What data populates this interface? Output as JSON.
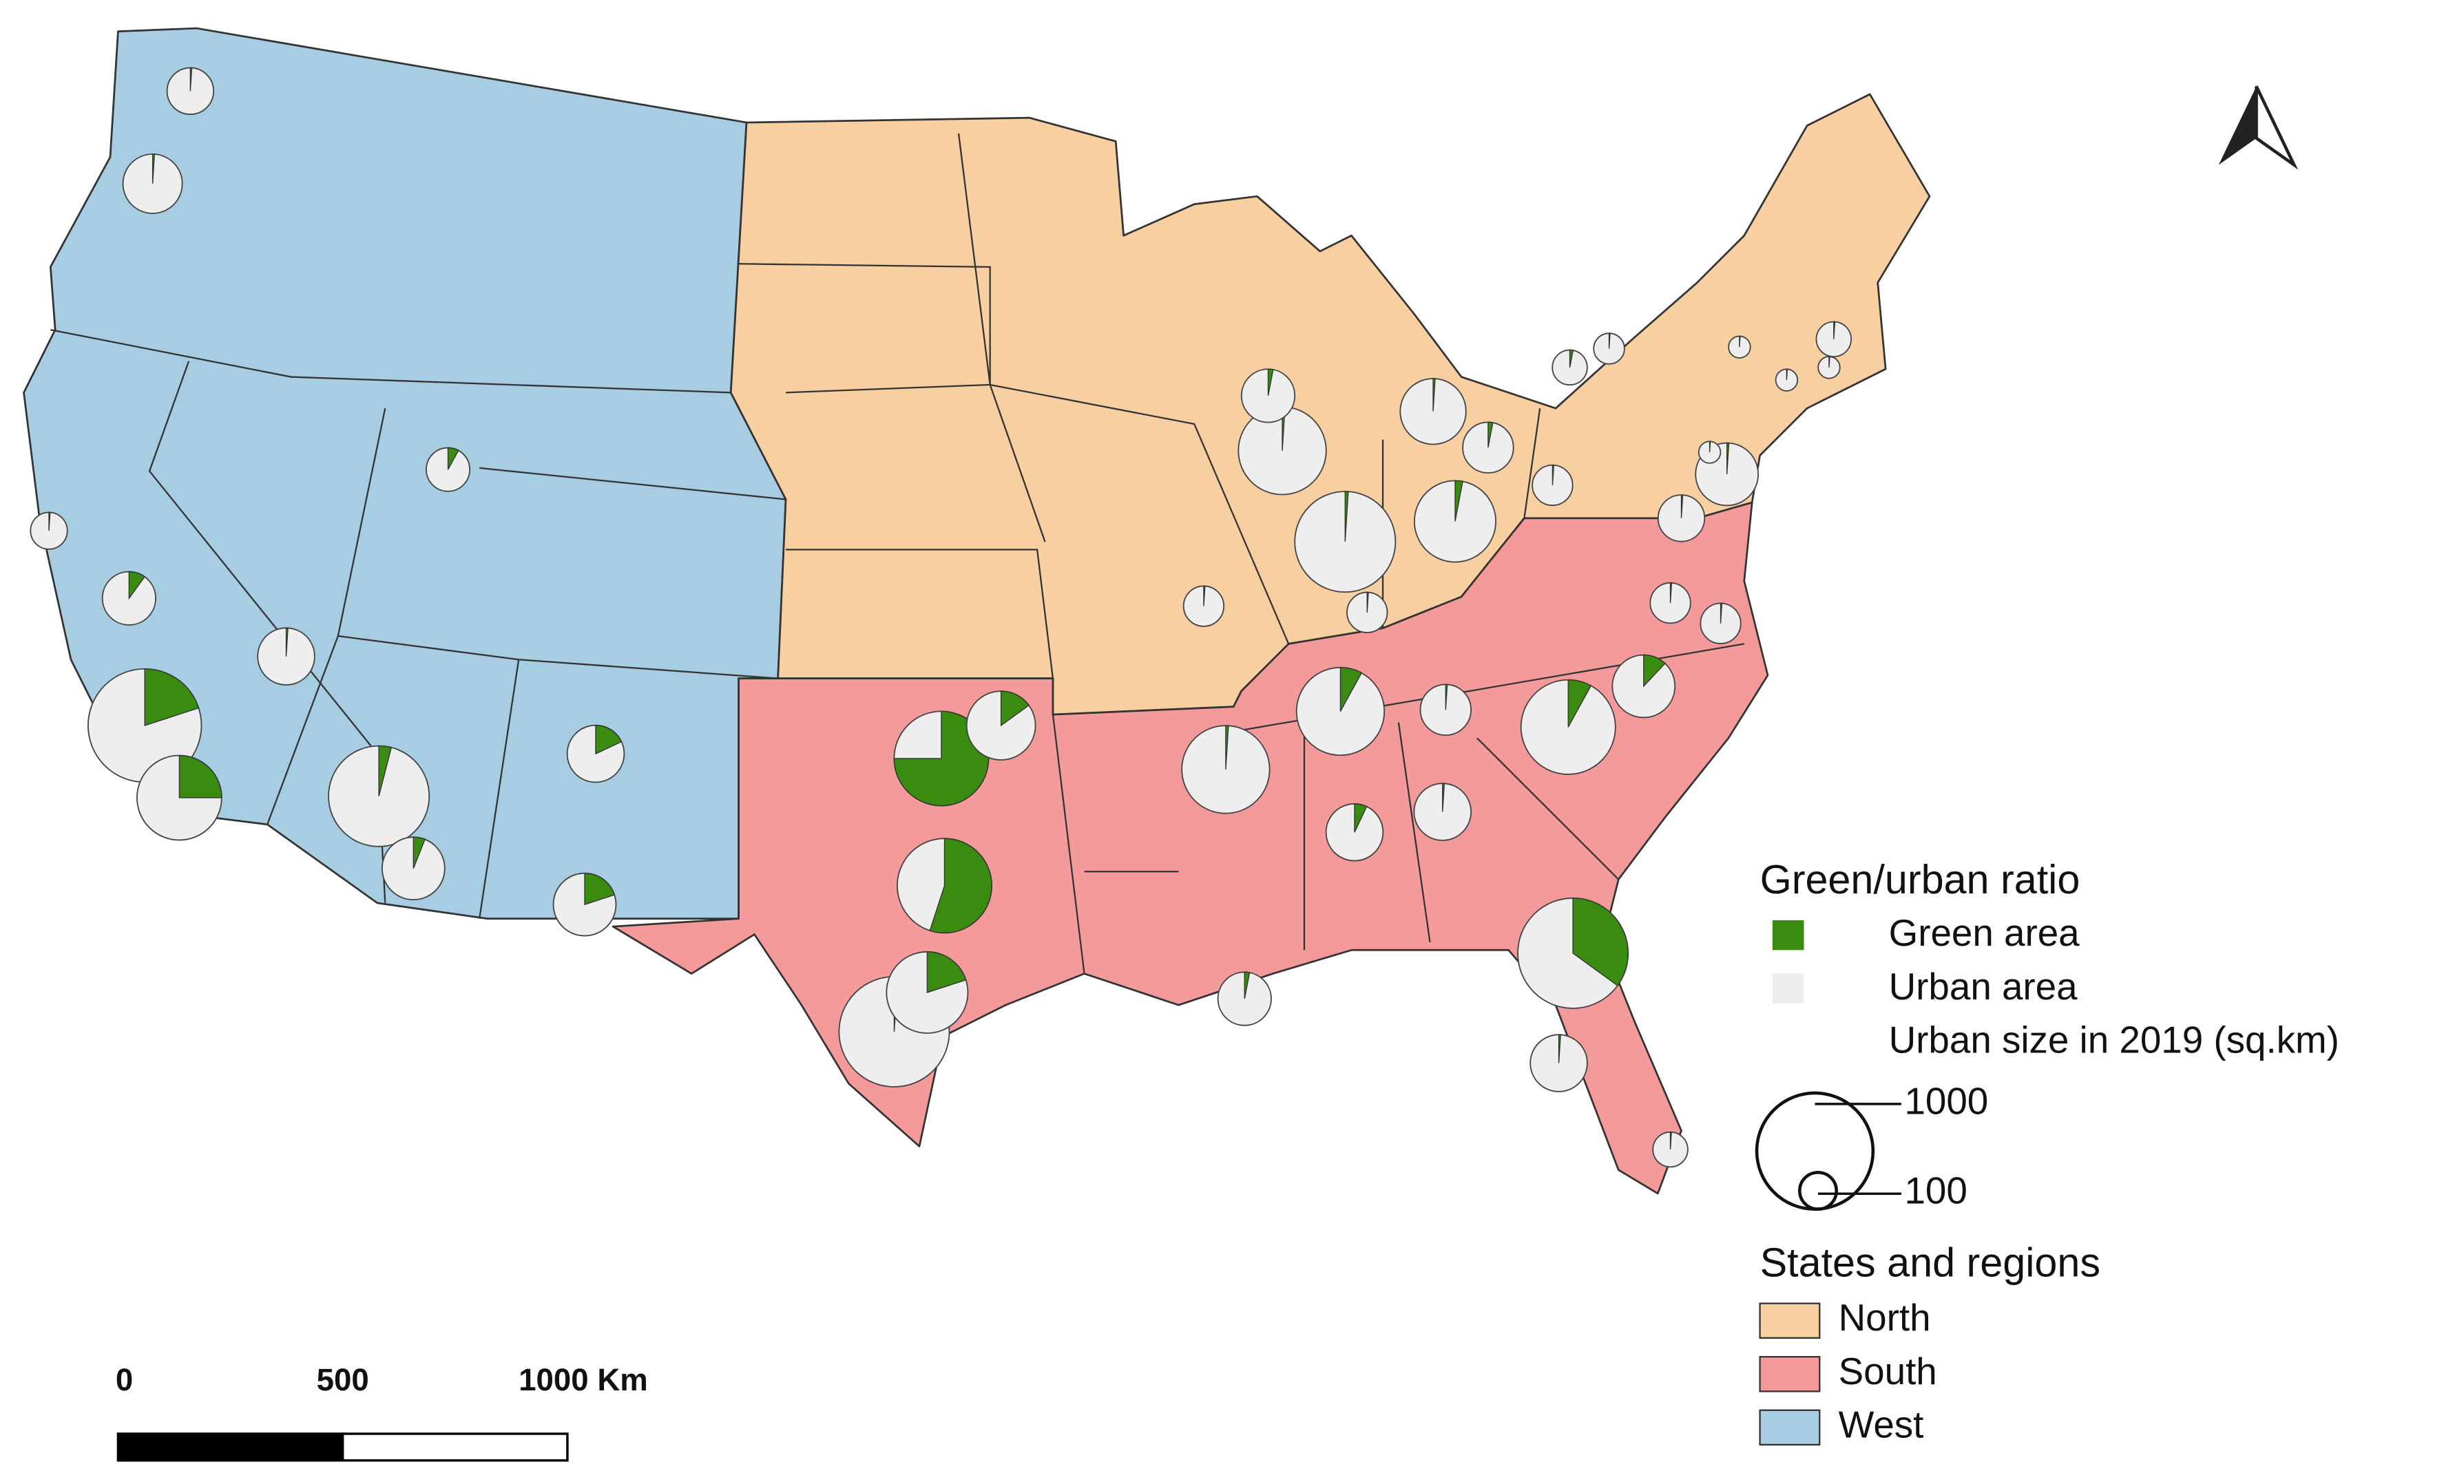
{
  "legend": {
    "title": "Green/urban ratio",
    "items": [
      {
        "label": "Green area",
        "color": "#3a8c11"
      },
      {
        "label": "Urban area",
        "color": "#eeeeee"
      }
    ],
    "size_title": "Urban size in 2019 (sq.km)",
    "size_values": [
      1000,
      100
    ]
  },
  "regions": {
    "title": "States and regions",
    "items": [
      {
        "label": "North",
        "color": "#f7cfa0"
      },
      {
        "label": "South",
        "color": "#f59a9a"
      },
      {
        "label": "West",
        "color": "#a6cde2"
      }
    ]
  },
  "scale_bar": {
    "ticks": [
      0,
      500,
      {
        "value": 1000,
        "label": "1000 Km"
      }
    ]
  },
  "pies": [
    {
      "green": 1,
      "size": 160
    },
    {
      "green": 1,
      "size": 260
    },
    {
      "green": 1,
      "size": 100
    },
    {
      "green": 10,
      "size": 210
    },
    {
      "green": 20,
      "size": 950
    },
    {
      "green": 25,
      "size": 530
    },
    {
      "green": 1,
      "size": 240
    },
    {
      "green": 8,
      "size": 140
    },
    {
      "green": 4,
      "size": 750
    },
    {
      "green": 6,
      "size": 290
    },
    {
      "green": 18,
      "size": 240
    },
    {
      "green": 20,
      "size": 290
    },
    {
      "green": 75,
      "size": 660
    },
    {
      "green": 15,
      "size": 350
    },
    {
      "green": 55,
      "size": 660
    },
    {
      "green": 20,
      "size": 490
    },
    {
      "green": 1,
      "size": 900
    },
    {
      "green": 1,
      "size": 120
    },
    {
      "green": 1,
      "size": 570
    },
    {
      "green": 3,
      "size": 210
    },
    {
      "green": 1,
      "size": 570
    },
    {
      "green": 1,
      "size": 750
    },
    {
      "green": 1,
      "size": 120
    },
    {
      "green": 1,
      "size": 320
    },
    {
      "green": 3,
      "size": 490
    },
    {
      "green": 3,
      "size": 190
    },
    {
      "green": 1,
      "size": 120
    },
    {
      "green": 3,
      "size": 90
    },
    {
      "green": 1,
      "size": 70
    },
    {
      "green": 1,
      "size": 35
    },
    {
      "green": 1,
      "size": 90
    },
    {
      "green": 1,
      "size": 35
    },
    {
      "green": 1,
      "size": 35
    },
    {
      "green": 1,
      "size": 35
    },
    {
      "green": 1,
      "size": 290
    },
    {
      "green": 1,
      "size": 160
    },
    {
      "green": 1,
      "size": 120
    },
    {
      "green": 1,
      "size": 120
    },
    {
      "green": 8,
      "size": 570
    },
    {
      "green": 1,
      "size": 190
    },
    {
      "green": 8,
      "size": 660
    },
    {
      "green": 12,
      "size": 290
    },
    {
      "green": 7,
      "size": 240
    },
    {
      "green": 1,
      "size": 240
    },
    {
      "green": 3,
      "size": 210
    },
    {
      "green": 35,
      "size": 900
    },
    {
      "green": 1,
      "size": 240
    },
    {
      "green": 1,
      "size": 90
    }
  ]
}
